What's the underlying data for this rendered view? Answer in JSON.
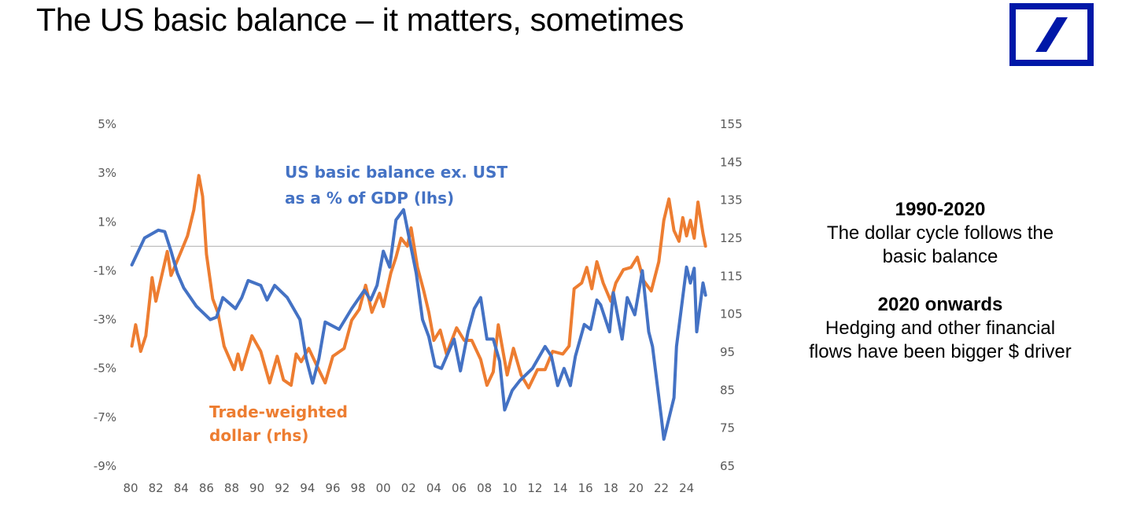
{
  "title": "The US basic balance – it matters, sometimes",
  "logo": {
    "name": "deutsche-bank-logo",
    "color": "#0018A8"
  },
  "side_text": {
    "heading1": "1990-2020",
    "line1a": "The dollar cycle follows the",
    "line1b": "basic balance",
    "heading2": "2020 onwards",
    "line2a": "Hedging and other financial",
    "line2b": "flows have been bigger $ driver"
  },
  "chart_data": {
    "type": "line",
    "title": "",
    "xlabel": "",
    "x_ticks": [
      "80",
      "82",
      "84",
      "86",
      "88",
      "90",
      "92",
      "94",
      "96",
      "98",
      "00",
      "02",
      "04",
      "06",
      "08",
      "10",
      "12",
      "14",
      "16",
      "18",
      "20",
      "22",
      "24"
    ],
    "xlim": [
      1980,
      2025.6
    ],
    "y_left": {
      "ticks": [
        "5%",
        "3%",
        "1%",
        "-1%",
        "-3%",
        "-5%",
        "-7%",
        "-9%"
      ],
      "range": [
        -9,
        5
      ]
    },
    "y_right": {
      "ticks": [
        "155",
        "145",
        "135",
        "125",
        "115",
        "105",
        "95",
        "85",
        "75",
        "65"
      ],
      "range": [
        65,
        155
      ]
    },
    "reference_line": {
      "axis": "left",
      "value": 0,
      "color": "#BFBFBF"
    },
    "grid": false,
    "series": [
      {
        "name": "US basic balance ex. UST as a % of GDP (lhs)",
        "label_line1": "US basic balance ex. UST",
        "label_line2": "as a % of GDP (lhs)",
        "axis": "left",
        "color": "#4472C4",
        "points": [
          [
            1980.1,
            -0.76
          ],
          [
            1981.1,
            0.34
          ],
          [
            1982.2,
            0.66
          ],
          [
            1982.7,
            0.6
          ],
          [
            1983.2,
            -0.2
          ],
          [
            1983.7,
            -1.1
          ],
          [
            1984.2,
            -1.7
          ],
          [
            1985.2,
            -2.45
          ],
          [
            1986.3,
            -3.0
          ],
          [
            1986.8,
            -2.9
          ],
          [
            1987.3,
            -2.1
          ],
          [
            1988.3,
            -2.55
          ],
          [
            1988.8,
            -2.1
          ],
          [
            1989.3,
            -1.4
          ],
          [
            1990.3,
            -1.6
          ],
          [
            1990.8,
            -2.2
          ],
          [
            1991.4,
            -1.6
          ],
          [
            1992.4,
            -2.1
          ],
          [
            1993.4,
            -3.0
          ],
          [
            1993.9,
            -4.6
          ],
          [
            1994.4,
            -5.6
          ],
          [
            1994.9,
            -4.6
          ],
          [
            1995.4,
            -3.1
          ],
          [
            1996.5,
            -3.4
          ],
          [
            1997.5,
            -2.55
          ],
          [
            1998.5,
            -1.8
          ],
          [
            1999.0,
            -2.2
          ],
          [
            1999.5,
            -1.6
          ],
          [
            2000.0,
            -0.2
          ],
          [
            2000.5,
            -0.85
          ],
          [
            2001.0,
            1.08
          ],
          [
            2001.6,
            1.5
          ],
          [
            2002.1,
            0.2
          ],
          [
            2002.6,
            -1.1
          ],
          [
            2003.1,
            -3.0
          ],
          [
            2003.6,
            -3.7
          ],
          [
            2004.1,
            -4.9
          ],
          [
            2004.6,
            -5.0
          ],
          [
            2005.1,
            -4.4
          ],
          [
            2005.6,
            -3.8
          ],
          [
            2006.1,
            -5.1
          ],
          [
            2006.7,
            -3.5
          ],
          [
            2007.2,
            -2.55
          ],
          [
            2007.7,
            -2.1
          ],
          [
            2008.2,
            -3.8
          ],
          [
            2008.7,
            -3.8
          ],
          [
            2009.2,
            -4.7
          ],
          [
            2009.6,
            -6.7
          ],
          [
            2010.2,
            -5.9
          ],
          [
            2010.8,
            -5.5
          ],
          [
            2011.8,
            -5.0
          ],
          [
            2012.8,
            -4.1
          ],
          [
            2013.3,
            -4.5
          ],
          [
            2013.8,
            -5.7
          ],
          [
            2014.3,
            -5.0
          ],
          [
            2014.8,
            -5.7
          ],
          [
            2015.2,
            -4.5
          ],
          [
            2015.9,
            -3.2
          ],
          [
            2016.4,
            -3.4
          ],
          [
            2016.9,
            -2.2
          ],
          [
            2017.2,
            -2.4
          ],
          [
            2017.9,
            -3.5
          ],
          [
            2018.2,
            -1.9
          ],
          [
            2018.9,
            -3.8
          ],
          [
            2019.3,
            -2.1
          ],
          [
            2019.9,
            -2.8
          ],
          [
            2020.5,
            -1.0
          ],
          [
            2021.0,
            -3.5
          ],
          [
            2021.3,
            -4.1
          ],
          [
            2022.0,
            -7.0
          ],
          [
            2022.2,
            -7.9
          ],
          [
            2023.0,
            -6.2
          ],
          [
            2023.2,
            -4.1
          ],
          [
            2024.0,
            -0.85
          ],
          [
            2024.3,
            -1.5
          ],
          [
            2024.6,
            -0.9
          ],
          [
            2024.8,
            -3.5
          ],
          [
            2025.3,
            -1.5
          ],
          [
            2025.5,
            -2.0
          ]
        ]
      },
      {
        "name": "Trade-weighted dollar (rhs)",
        "label_line1": "Trade-weighted",
        "label_line2": "dollar (rhs)",
        "axis": "right",
        "color": "#ED7D31",
        "points": [
          [
            1980.1,
            96.6
          ],
          [
            1980.4,
            102.2
          ],
          [
            1980.8,
            95.2
          ],
          [
            1981.2,
            99.3
          ],
          [
            1981.7,
            114.6
          ],
          [
            1982.0,
            108.4
          ],
          [
            1982.9,
            121.5
          ],
          [
            1983.2,
            115.2
          ],
          [
            1984.0,
            121.5
          ],
          [
            1984.5,
            125.6
          ],
          [
            1985.0,
            132.4
          ],
          [
            1985.4,
            141.5
          ],
          [
            1985.7,
            136.0
          ],
          [
            1986.0,
            120.8
          ],
          [
            1986.5,
            109.0
          ],
          [
            1986.9,
            105.5
          ],
          [
            1987.4,
            96.6
          ],
          [
            1988.2,
            90.4
          ],
          [
            1988.5,
            94.5
          ],
          [
            1988.8,
            90.4
          ],
          [
            1989.6,
            99.3
          ],
          [
            1990.3,
            95.2
          ],
          [
            1991.0,
            86.9
          ],
          [
            1991.6,
            93.9
          ],
          [
            1992.1,
            87.7
          ],
          [
            1992.7,
            86.3
          ],
          [
            1993.1,
            94.5
          ],
          [
            1993.5,
            92.5
          ],
          [
            1994.1,
            96.0
          ],
          [
            1994.8,
            91.0
          ],
          [
            1995.4,
            86.9
          ],
          [
            1996.0,
            93.9
          ],
          [
            1996.9,
            96.0
          ],
          [
            1997.5,
            103.4
          ],
          [
            1998.1,
            106.3
          ],
          [
            1998.6,
            112.6
          ],
          [
            1999.1,
            105.5
          ],
          [
            1999.7,
            110.5
          ],
          [
            2000.0,
            107.0
          ],
          [
            2000.6,
            115.9
          ],
          [
            2001.0,
            120.0
          ],
          [
            2001.4,
            125.0
          ],
          [
            2001.9,
            122.9
          ],
          [
            2002.2,
            127.7
          ],
          [
            2002.7,
            117.3
          ],
          [
            2003.2,
            111.1
          ],
          [
            2003.6,
            105.5
          ],
          [
            2004.0,
            98.1
          ],
          [
            2004.5,
            100.8
          ],
          [
            2005.0,
            94.5
          ],
          [
            2005.8,
            101.4
          ],
          [
            2006.4,
            98.1
          ],
          [
            2007.0,
            98.1
          ],
          [
            2007.7,
            93.1
          ],
          [
            2008.2,
            86.3
          ],
          [
            2008.7,
            89.8
          ],
          [
            2009.1,
            102.2
          ],
          [
            2009.8,
            89.0
          ],
          [
            2010.3,
            96.0
          ],
          [
            2010.9,
            89.0
          ],
          [
            2011.5,
            85.6
          ],
          [
            2012.2,
            90.4
          ],
          [
            2012.8,
            90.4
          ],
          [
            2013.4,
            95.2
          ],
          [
            2014.2,
            94.5
          ],
          [
            2014.7,
            96.6
          ],
          [
            2015.1,
            111.7
          ],
          [
            2015.7,
            113.2
          ],
          [
            2016.1,
            117.3
          ],
          [
            2016.5,
            111.7
          ],
          [
            2016.9,
            118.8
          ],
          [
            2017.4,
            113.2
          ],
          [
            2018.0,
            108.4
          ],
          [
            2018.4,
            113.2
          ],
          [
            2019.0,
            116.7
          ],
          [
            2019.6,
            117.3
          ],
          [
            2020.1,
            120.0
          ],
          [
            2020.6,
            113.8
          ],
          [
            2021.2,
            111.1
          ],
          [
            2021.8,
            118.8
          ],
          [
            2022.2,
            129.7
          ],
          [
            2022.6,
            135.3
          ],
          [
            2023.0,
            127.0
          ],
          [
            2023.4,
            124.2
          ],
          [
            2023.7,
            130.4
          ],
          [
            2024.0,
            125.6
          ],
          [
            2024.3,
            129.7
          ],
          [
            2024.6,
            125.0
          ],
          [
            2024.9,
            134.5
          ],
          [
            2025.3,
            126.2
          ],
          [
            2025.5,
            122.9
          ]
        ]
      }
    ]
  }
}
